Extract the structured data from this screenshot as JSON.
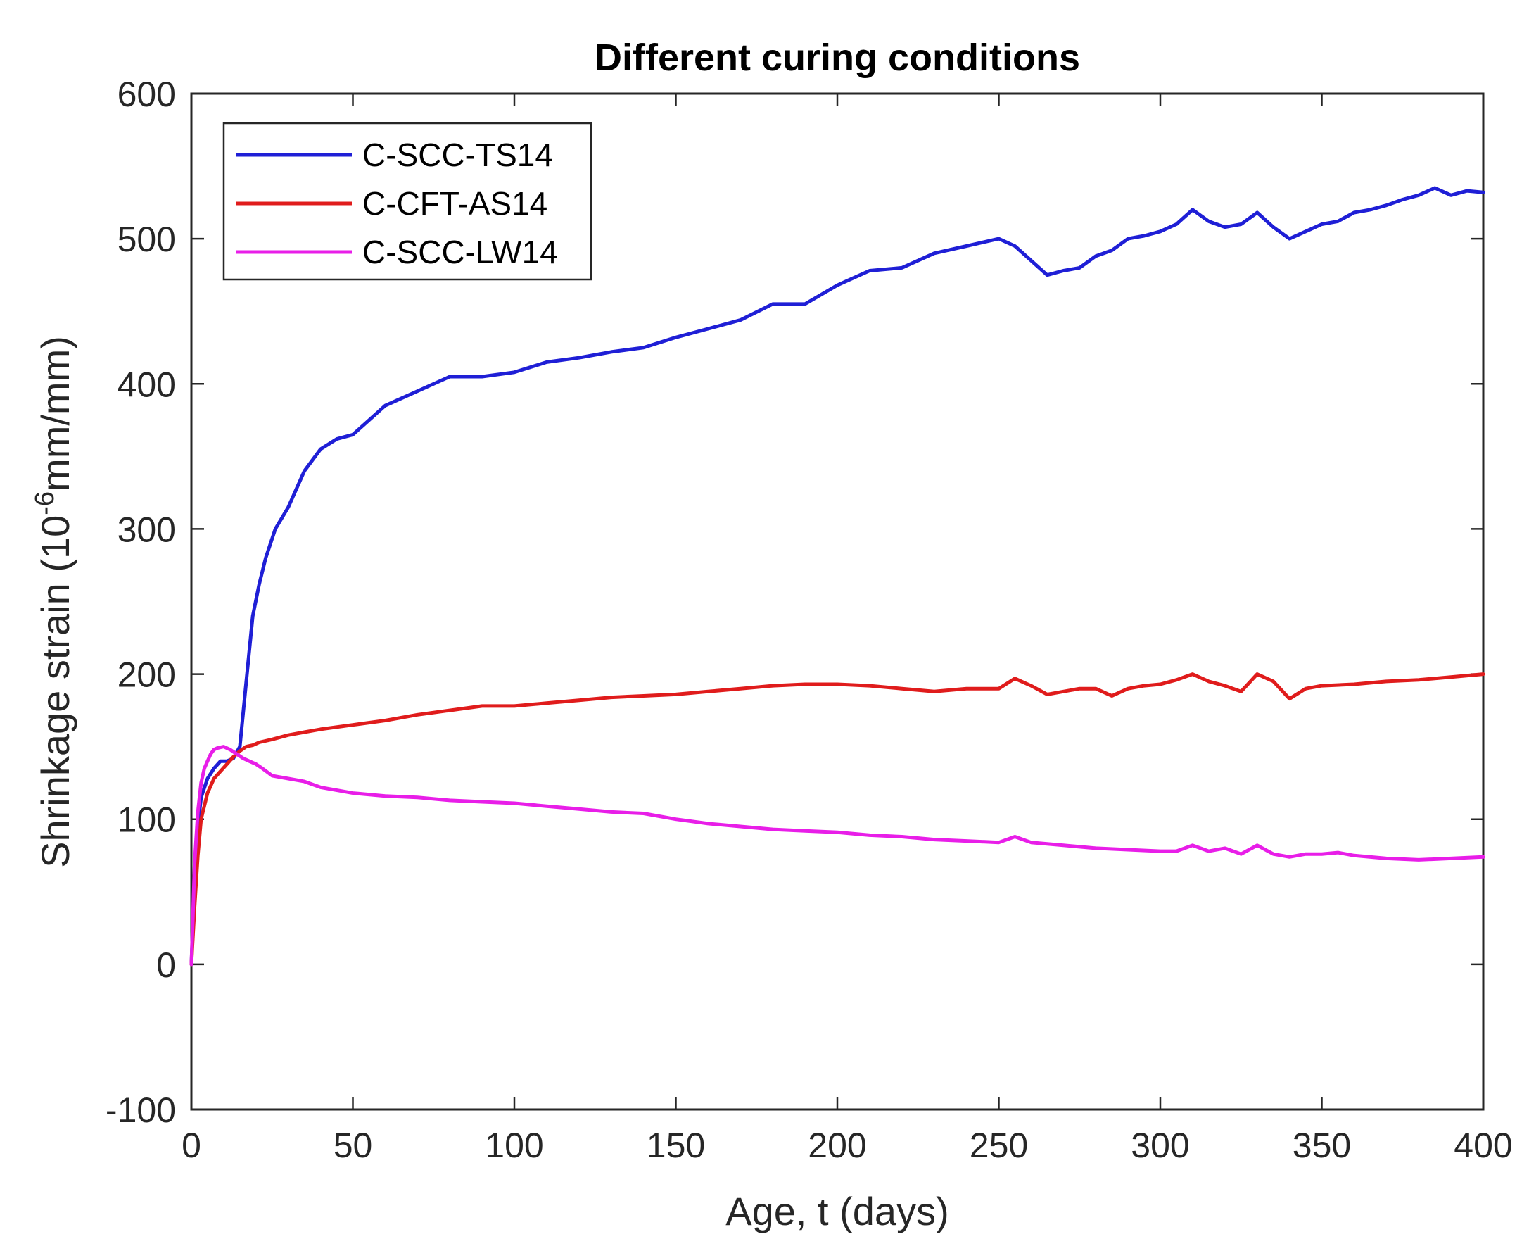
{
  "chart_data": {
    "type": "line",
    "title": "Different curing conditions",
    "xlabel": "Age, t (days)",
    "ylabel": "Shrinkage strain (10",
    "ylabel_exponent": "-6",
    "ylabel_suffix": "mm/mm)",
    "xlim": [
      0,
      400
    ],
    "ylim": [
      -100,
      600
    ],
    "xticks": [
      0,
      50,
      100,
      150,
      200,
      250,
      300,
      350,
      400
    ],
    "yticks": [
      -100,
      0,
      100,
      200,
      300,
      400,
      500,
      600
    ],
    "grid": false,
    "legend_position": "top-left",
    "series": [
      {
        "name": "C-SCC-TS14",
        "color": "#1f1fd6",
        "x": [
          0,
          1,
          2,
          3,
          5,
          7,
          9,
          11,
          13,
          15,
          17,
          19,
          21,
          23,
          26,
          30,
          35,
          40,
          45,
          50,
          55,
          60,
          70,
          80,
          90,
          100,
          110,
          120,
          130,
          140,
          150,
          160,
          170,
          180,
          190,
          200,
          210,
          220,
          230,
          240,
          250,
          255,
          260,
          265,
          270,
          275,
          280,
          285,
          290,
          295,
          300,
          305,
          310,
          315,
          320,
          325,
          330,
          335,
          340,
          345,
          350,
          355,
          360,
          365,
          370,
          375,
          380,
          385,
          390,
          395,
          400
        ],
        "y": [
          0,
          60,
          95,
          115,
          128,
          135,
          140,
          140,
          142,
          150,
          195,
          240,
          262,
          280,
          300,
          315,
          340,
          355,
          362,
          365,
          375,
          385,
          395,
          405,
          405,
          408,
          415,
          418,
          422,
          425,
          432,
          438,
          444,
          455,
          455,
          468,
          478,
          480,
          490,
          495,
          500,
          495,
          485,
          475,
          478,
          480,
          488,
          492,
          500,
          502,
          505,
          510,
          520,
          512,
          508,
          510,
          518,
          508,
          500,
          505,
          510,
          512,
          518,
          520,
          523,
          527,
          530,
          535,
          530,
          533,
          532
        ]
      },
      {
        "name": "C-CFT-AS14",
        "color": "#e01c1c",
        "x": [
          0,
          1,
          2,
          3,
          5,
          7,
          9,
          11,
          13,
          15,
          17,
          19,
          21,
          25,
          30,
          35,
          40,
          50,
          60,
          70,
          80,
          90,
          100,
          110,
          120,
          130,
          140,
          150,
          160,
          170,
          180,
          190,
          200,
          210,
          220,
          230,
          240,
          250,
          255,
          260,
          265,
          270,
          275,
          280,
          285,
          290,
          295,
          300,
          305,
          310,
          315,
          320,
          325,
          330,
          335,
          340,
          345,
          350,
          360,
          370,
          380,
          390,
          400
        ],
        "y": [
          0,
          40,
          75,
          100,
          118,
          128,
          133,
          138,
          143,
          147,
          150,
          151,
          153,
          155,
          158,
          160,
          162,
          165,
          168,
          172,
          175,
          178,
          178,
          180,
          182,
          184,
          185,
          186,
          188,
          190,
          192,
          193,
          193,
          192,
          190,
          188,
          190,
          190,
          197,
          192,
          186,
          188,
          190,
          190,
          185,
          190,
          192,
          193,
          196,
          200,
          195,
          192,
          188,
          200,
          195,
          183,
          190,
          192,
          193,
          195,
          196,
          198,
          200
        ]
      },
      {
        "name": "C-SCC-LW14",
        "color": "#e81ee8",
        "x": [
          0,
          1,
          2,
          3,
          4,
          5,
          6,
          7,
          8,
          10,
          12,
          14,
          16,
          18,
          20,
          22,
          25,
          30,
          35,
          40,
          50,
          60,
          70,
          80,
          90,
          100,
          110,
          120,
          130,
          140,
          150,
          160,
          170,
          180,
          190,
          200,
          210,
          220,
          230,
          240,
          250,
          255,
          260,
          270,
          280,
          290,
          300,
          305,
          310,
          315,
          320,
          325,
          330,
          335,
          340,
          345,
          350,
          355,
          360,
          370,
          380,
          390,
          400
        ],
        "y": [
          0,
          70,
          105,
          125,
          135,
          140,
          145,
          148,
          149,
          150,
          148,
          145,
          142,
          140,
          138,
          135,
          130,
          128,
          126,
          122,
          118,
          116,
          115,
          113,
          112,
          111,
          109,
          107,
          105,
          104,
          100,
          97,
          95,
          93,
          92,
          91,
          89,
          88,
          86,
          85,
          84,
          88,
          84,
          82,
          80,
          79,
          78,
          78,
          82,
          78,
          80,
          76,
          82,
          76,
          74,
          76,
          76,
          77,
          75,
          73,
          72,
          73,
          74
        ]
      }
    ]
  }
}
